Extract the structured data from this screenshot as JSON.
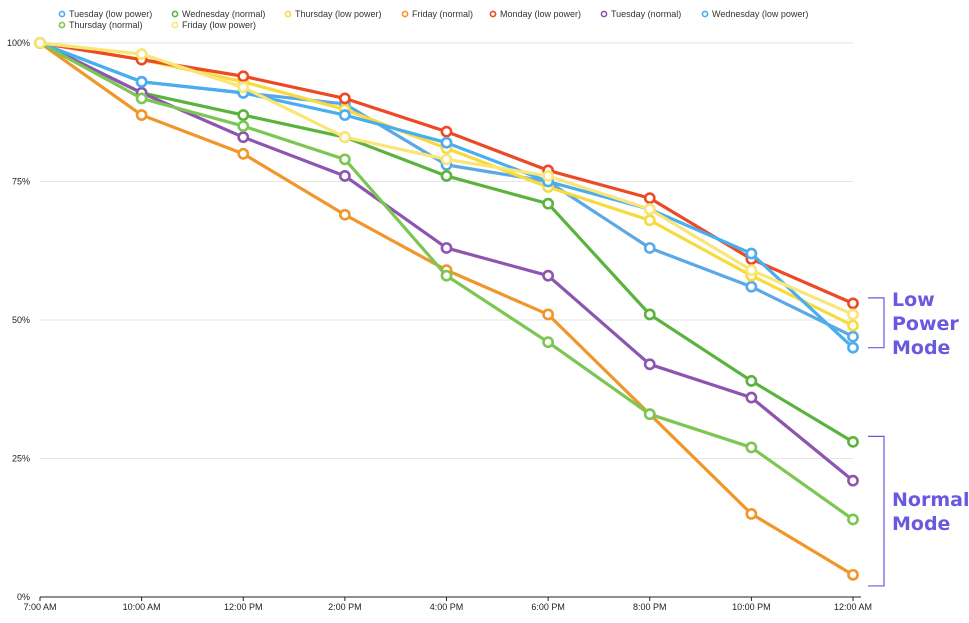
{
  "chart_data": {
    "type": "line",
    "title": "",
    "xlabel": "",
    "ylabel": "",
    "x": [
      "7:00 AM",
      "10:00 AM",
      "12:00 PM",
      "2:00 PM",
      "4:00 PM",
      "6:00 PM",
      "8:00 PM",
      "10:00 PM",
      "12:00 AM"
    ],
    "y_ticks": [
      "0%",
      "25%",
      "50%",
      "75%",
      "100%"
    ],
    "ylim": [
      0,
      100
    ],
    "grid": true,
    "legend_position": "top",
    "series": [
      {
        "name": "Tuesday (low power)",
        "color": "#5aa9e6",
        "values": [
          100,
          93,
          91,
          89,
          78,
          75,
          63,
          56,
          47
        ]
      },
      {
        "name": "Wednesday (normal)",
        "color": "#5ab33c",
        "values": [
          100,
          91,
          87,
          83,
          76,
          71,
          51,
          39,
          28
        ]
      },
      {
        "name": "Thursday (low power)",
        "color": "#f7da3d",
        "values": [
          100,
          97,
          93,
          88,
          81,
          74,
          68,
          58,
          49
        ]
      },
      {
        "name": "Friday (normal)",
        "color": "#f0962a",
        "values": [
          100,
          87,
          80,
          69,
          59,
          51,
          33,
          15,
          4
        ]
      },
      {
        "name": "Monday (low power)",
        "color": "#ec4a24",
        "values": [
          100,
          97,
          94,
          90,
          84,
          77,
          72,
          61,
          53
        ]
      },
      {
        "name": "Tuesday (normal)",
        "color": "#8e55b0",
        "values": [
          100,
          91,
          83,
          76,
          63,
          58,
          42,
          36,
          21
        ]
      },
      {
        "name": "Wednesday (low power)",
        "color": "#48aef0",
        "values": [
          100,
          93,
          91,
          87,
          82,
          75,
          70,
          62,
          45
        ]
      },
      {
        "name": "Thursday (normal)",
        "color": "#7cc653",
        "values": [
          100,
          90,
          85,
          79,
          58,
          46,
          33,
          27,
          14
        ]
      },
      {
        "name": "Friday (low power)",
        "color": "#fbe577",
        "values": [
          100,
          98,
          92,
          83,
          79,
          76,
          70,
          59,
          51
        ]
      }
    ],
    "annotations": [
      {
        "text_lines": [
          "Low",
          "Power",
          "Mode"
        ],
        "color": "#6a59e0",
        "range": [
          45,
          54
        ]
      },
      {
        "text_lines": [
          "Normal",
          "Mode"
        ],
        "color": "#6a59e0",
        "range": [
          2,
          29
        ]
      }
    ]
  }
}
